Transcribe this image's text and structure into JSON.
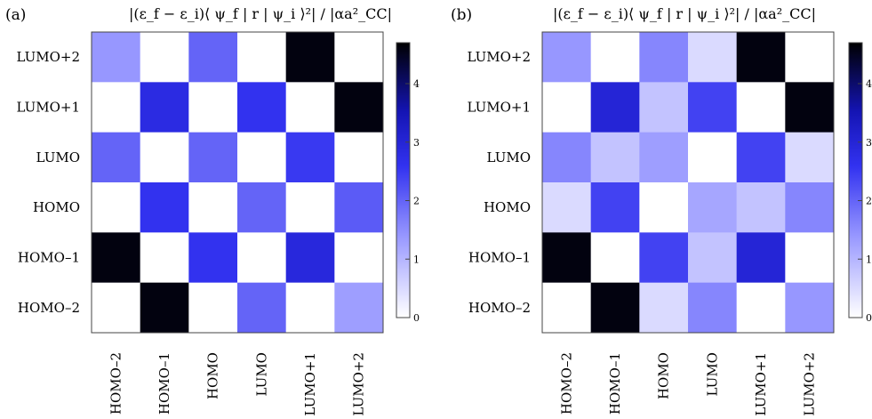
{
  "chart_data": [
    {
      "type": "heatmap",
      "panel_label": "(a)",
      "title": "|(ε_f − ε_i)⟨ ψ_f | r | ψ_i ⟩²| / |αa²_CC|",
      "rows": [
        "LUMO+2",
        "LUMO+1",
        "LUMO",
        "HOMO",
        "HOMO–1",
        "HOMO–2"
      ],
      "cols": [
        "HOMO–2",
        "HOMO–1",
        "HOMO",
        "LUMO",
        "LUMO+1",
        "LUMO+2"
      ],
      "values": [
        [
          1.4,
          0,
          2.0,
          0,
          4.6,
          0
        ],
        [
          0,
          2.8,
          0,
          2.6,
          0,
          4.6
        ],
        [
          2.0,
          0,
          2.0,
          0,
          2.5,
          0
        ],
        [
          0,
          2.6,
          0,
          2.0,
          0,
          2.1
        ],
        [
          4.6,
          0,
          2.6,
          0,
          2.9,
          0
        ],
        [
          0,
          4.6,
          0,
          2.0,
          0,
          1.3
        ]
      ],
      "colorbar": {
        "range": [
          0,
          4.7
        ],
        "ticks": [
          0,
          1,
          2,
          3,
          4
        ]
      }
    },
    {
      "type": "heatmap",
      "panel_label": "(b)",
      "title": "|(ε_f − ε_i)⟨ ψ_f | r | ψ_i ⟩²| / |αa²_CC|",
      "rows": [
        "LUMO+2",
        "LUMO+1",
        "LUMO",
        "HOMO",
        "HOMO–1",
        "HOMO–2"
      ],
      "cols": [
        "HOMO–2",
        "HOMO–1",
        "HOMO",
        "LUMO",
        "LUMO+1",
        "LUMO+2"
      ],
      "values": [
        [
          1.4,
          0,
          1.6,
          0.5,
          4.6,
          0
        ],
        [
          0,
          3.0,
          0.8,
          2.4,
          0,
          4.6
        ],
        [
          1.6,
          0.8,
          1.3,
          0,
          2.4,
          0.5
        ],
        [
          0.5,
          2.4,
          0,
          1.2,
          0.8,
          1.6
        ],
        [
          4.6,
          0,
          2.4,
          0.8,
          3.0,
          0
        ],
        [
          0,
          4.6,
          0.5,
          1.6,
          0,
          1.4
        ]
      ],
      "colorbar": {
        "range": [
          0,
          4.7
        ],
        "ticks": [
          0,
          1,
          2,
          3,
          4
        ]
      }
    }
  ]
}
